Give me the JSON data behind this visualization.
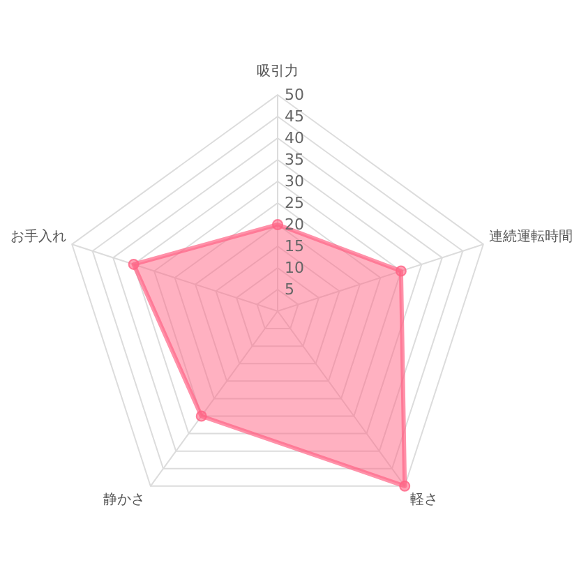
{
  "chart_data": {
    "type": "radar",
    "categories": [
      "吸引力",
      "連続運転時間",
      "軽さ",
      "静かさ",
      "お手入れ"
    ],
    "series": [
      {
        "color": "#ff6384",
        "values": [
          20,
          30,
          50,
          30,
          35
        ]
      }
    ],
    "ylim": [
      0,
      50
    ],
    "yticks": [
      5,
      10,
      15,
      20,
      25,
      30,
      35,
      40,
      45,
      50
    ],
    "grid": true,
    "marker": "circle"
  }
}
